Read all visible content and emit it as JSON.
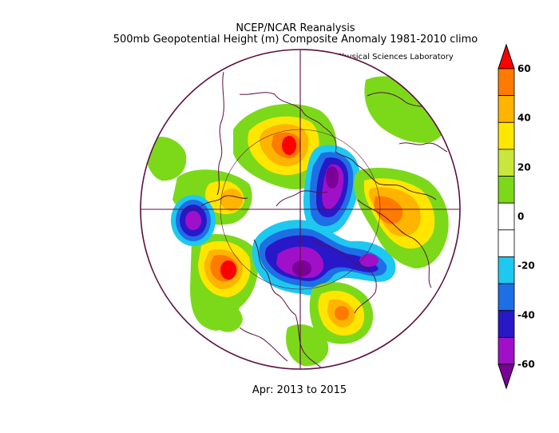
{
  "header": {
    "line1": "NCEP/NCAR Reanalysis",
    "line2": "500mb Geopotential Height (m) Composite Anomaly 1981-2010 climo",
    "credit": "NOAA Physical Sciences Laboratory"
  },
  "footer": {
    "period": "Apr: 2013 to 2015"
  },
  "colorbar": {
    "levels": [
      60,
      50,
      40,
      30,
      20,
      10,
      0,
      -10,
      -20,
      -30,
      -40,
      -50,
      -60
    ],
    "labels": [
      "60",
      "40",
      "20",
      "0",
      "-20",
      "-40",
      "-60"
    ],
    "colors": [
      "#ff0000",
      "#ff7a00",
      "#ffb400",
      "#ffe600",
      "#c8e63c",
      "#7cd91a",
      "#ffffff",
      "#ffffff",
      "#1ec8f0",
      "#1e6ee6",
      "#2818c8",
      "#a010c8",
      "#7a0096"
    ]
  },
  "colors": {
    "outline": "#5a1040",
    "background": "#ffffff"
  }
}
